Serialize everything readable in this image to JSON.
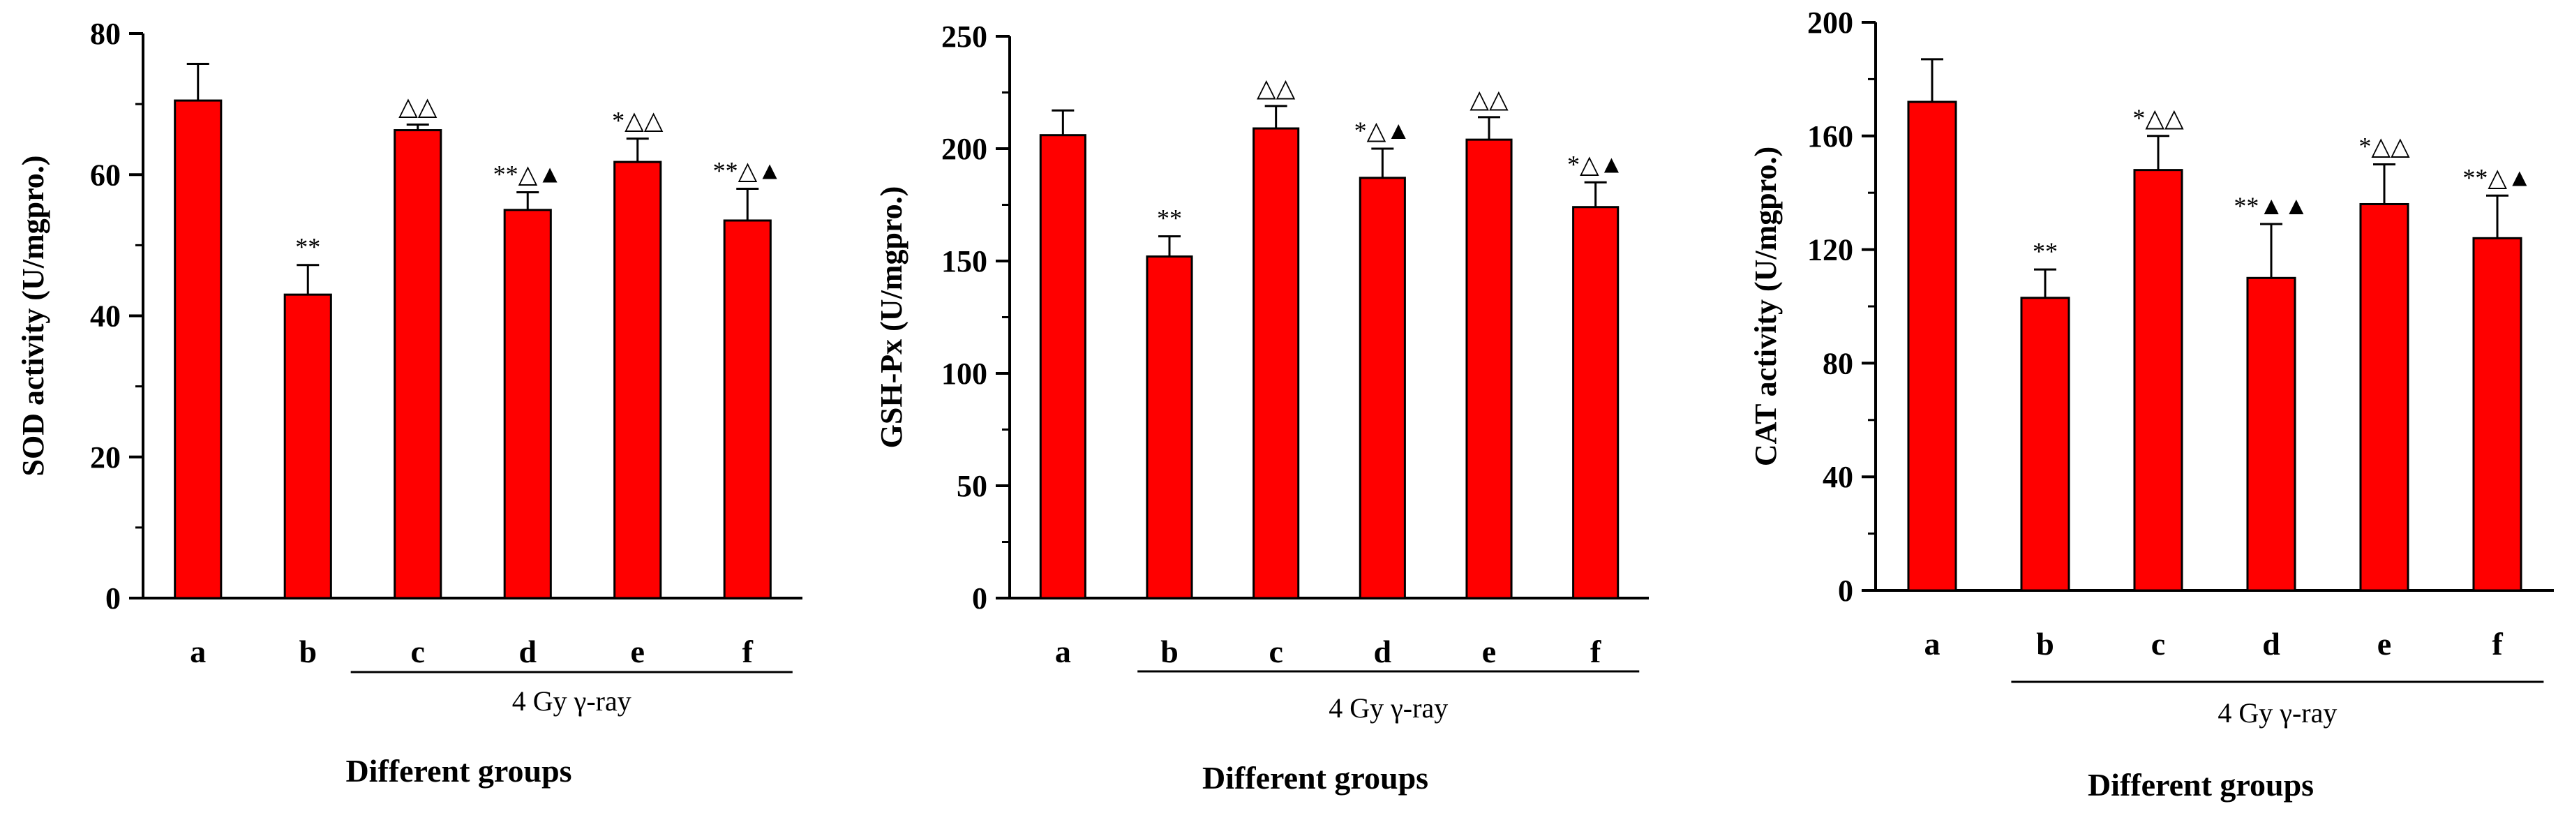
{
  "colors": {
    "bar": "#ff0000",
    "axis": "#000000"
  },
  "chart_data": [
    {
      "type": "bar",
      "categories": [
        "a",
        "b",
        "c",
        "d",
        "e",
        "f"
      ],
      "values": [
        70.5,
        43.0,
        66.3,
        55.0,
        61.8,
        53.5
      ],
      "errors": [
        5.2,
        4.2,
        0.8,
        2.5,
        3.3,
        4.5
      ],
      "annotations": [
        "",
        "**",
        "△△",
        "**△▲",
        "*△△",
        "**△▲"
      ],
      "ylabel": "SOD activity (U/mgpro.)",
      "yticks": [
        "0",
        "20",
        "40",
        "60",
        "80"
      ],
      "ylim": [
        0,
        80
      ],
      "bracket_label": "4 Gy γ-ray",
      "xlabel": "Different groups"
    },
    {
      "type": "bar",
      "categories": [
        "a",
        "b",
        "c",
        "d",
        "e",
        "f"
      ],
      "values": [
        206,
        152,
        209,
        187,
        204,
        174
      ],
      "errors": [
        11,
        9,
        10,
        13,
        10,
        11
      ],
      "annotations": [
        "",
        "**",
        "△△",
        "*△▲",
        "△△",
        "*△▲"
      ],
      "ylabel": "GSH-Px (U/mgpro.)",
      "yticks": [
        "0",
        "50",
        "100",
        "150",
        "200",
        "250"
      ],
      "ylim": [
        0,
        250
      ],
      "bracket_label": "4 Gy γ-ray",
      "xlabel": "Different groups"
    },
    {
      "type": "bar",
      "categories": [
        "a",
        "b",
        "c",
        "d",
        "e",
        "f"
      ],
      "values": [
        172,
        103,
        148,
        110,
        136,
        124
      ],
      "errors": [
        15,
        10,
        12,
        19,
        14,
        15
      ],
      "annotations": [
        "",
        "**",
        "*△△",
        "**▲▲",
        "*△△",
        "**△▲"
      ],
      "ylabel": "CAT activity (U/mgpro.)",
      "yticks": [
        "0",
        "40",
        "80",
        "120",
        "160",
        "200"
      ],
      "ylim": [
        0,
        200
      ],
      "bracket_label": "4 Gy γ-ray",
      "xlabel": "Different groups"
    }
  ]
}
